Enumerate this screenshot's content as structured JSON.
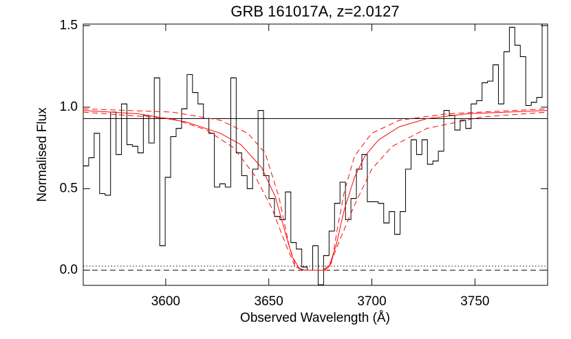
{
  "chart_data": {
    "type": "line",
    "title": "GRB 161017A, z=2.0127",
    "xlabel": "Observed Wavelength (Å)",
    "ylabel": "Normalised Flux",
    "xlim": [
      3560,
      3785.25
    ],
    "ylim": [
      -0.093,
      1.51
    ],
    "xticks": [
      3600,
      3650,
      3700,
      3750
    ],
    "yticks": [
      {
        "value": 0,
        "label": "0.0"
      },
      0.5,
      {
        "value": 1,
        "label": "1.0"
      },
      1.5
    ],
    "reference_lines": [
      {
        "value": 0,
        "style": "dashed"
      },
      {
        "value": 0.025,
        "style": "dotted"
      }
    ],
    "series": [
      {
        "style": "step",
        "color": "#000000",
        "bins": [
          3560.0,
          3562.65,
          3565.3,
          3567.95,
          3570.6,
          3573.25,
          3575.9,
          3578.55,
          3581.2,
          3583.85,
          3586.5,
          3589.15,
          3591.8,
          3594.45,
          3597.1,
          3599.75,
          3602.4,
          3605.05,
          3607.7,
          3610.35,
          3613.0,
          3615.65,
          3618.3,
          3620.95,
          3623.6,
          3626.25,
          3628.9,
          3631.55,
          3634.2,
          3636.85,
          3639.5,
          3642.15,
          3644.8,
          3647.45,
          3650.1,
          3652.75,
          3655.4,
          3658.05,
          3660.7,
          3663.35,
          3666.0,
          3668.65,
          3671.3,
          3673.95,
          3676.6,
          3679.25,
          3681.9,
          3684.55,
          3687.2,
          3689.85,
          3692.5,
          3695.15,
          3697.8,
          3700.45,
          3703.1,
          3705.75,
          3708.4,
          3711.05,
          3713.7,
          3716.35,
          3719.0,
          3721.65,
          3724.3,
          3726.95,
          3729.6,
          3732.25,
          3734.9,
          3737.55,
          3740.2,
          3742.85,
          3745.5,
          3748.15,
          3750.8,
          3753.45,
          3756.1,
          3758.75,
          3761.4,
          3764.05,
          3766.7,
          3769.35,
          3772.0,
          3774.65,
          3777.3,
          3779.95,
          3782.6,
          3785.25
        ],
        "values": [
          0.64,
          0.69,
          0.84,
          0.47,
          0.46,
          0.97,
          0.71,
          1.02,
          0.77,
          0.76,
          0.72,
          0.95,
          0.78,
          1.18,
          0.15,
          0.57,
          0.82,
          0.87,
          0.99,
          1.2,
          1.09,
          1.02,
          0.93,
          0.84,
          0.51,
          0.53,
          0.51,
          1.18,
          0.72,
          0.58,
          0.5,
          0.62,
          0.98,
          0.58,
          0.44,
          0.33,
          0.31,
          0.48,
          0.17,
          0.13,
          0.02,
          0.0,
          0.15,
          -0.09,
          0.09,
          0.24,
          0.41,
          0.54,
          0.31,
          0.44,
          0.62,
          0.71,
          0.42,
          0.42,
          0.41,
          0.29,
          0.36,
          0.22,
          0.36,
          0.62,
          0.8,
          0.71,
          0.8,
          0.65,
          0.67,
          0.73,
          0.98,
          0.95,
          0.86,
          0.92,
          0.87,
          1.02,
          1.04,
          1.15,
          1.16,
          1.26,
          1.02,
          1.34,
          1.49,
          1.38,
          1.31,
          1.01,
          1.03,
          1.06,
          1.51,
          0.93
        ]
      },
      {
        "style": "solid",
        "color": "#ff0000",
        "x": [
          3560,
          3586.4,
          3609.8,
          3626.5,
          3636.5,
          3646.5,
          3653.2,
          3658.2,
          3661.5,
          3664.9,
          3668.2,
          3676.6,
          3679.2,
          3682.6,
          3686.6,
          3691.6,
          3696.6,
          3703.3,
          3713.3,
          3726.7,
          3746.7,
          3785
        ],
        "values": [
          0.98,
          0.96,
          0.91,
          0.84,
          0.77,
          0.63,
          0.45,
          0.22,
          0.08,
          0.01,
          0,
          0,
          0.02,
          0.15,
          0.37,
          0.57,
          0.7,
          0.8,
          0.88,
          0.93,
          0.96,
          0.98
        ]
      },
      {
        "style": "dashed",
        "color": "#ff0000",
        "x": [
          3560,
          3603.1,
          3626.5,
          3639.8,
          3648.2,
          3654.9,
          3659.9,
          3663.2,
          3666.5,
          3678.2,
          3680.6,
          3683.2,
          3686.6,
          3691.6,
          3699.9,
          3713.3,
          3736.7,
          3785
        ],
        "values": [
          0.99,
          0.97,
          0.92,
          0.84,
          0.72,
          0.45,
          0.15,
          0.02,
          0,
          0,
          0.05,
          0.25,
          0.48,
          0.7,
          0.84,
          0.92,
          0.96,
          0.99
        ]
      },
      {
        "style": "dashed",
        "color": "#ff0000",
        "x": [
          3560,
          3603.1,
          3619.8,
          3633.1,
          3643.2,
          3651.5,
          3658.2,
          3662.5,
          3666.5,
          3676.6,
          3679.9,
          3684.9,
          3691.6,
          3699.9,
          3709.9,
          3726.7,
          3753.4,
          3785
        ],
        "values": [
          0.97,
          0.93,
          0.86,
          0.75,
          0.58,
          0.38,
          0.16,
          0.03,
          0,
          0,
          0.04,
          0.2,
          0.4,
          0.62,
          0.76,
          0.87,
          0.94,
          0.97
        ]
      }
    ]
  }
}
